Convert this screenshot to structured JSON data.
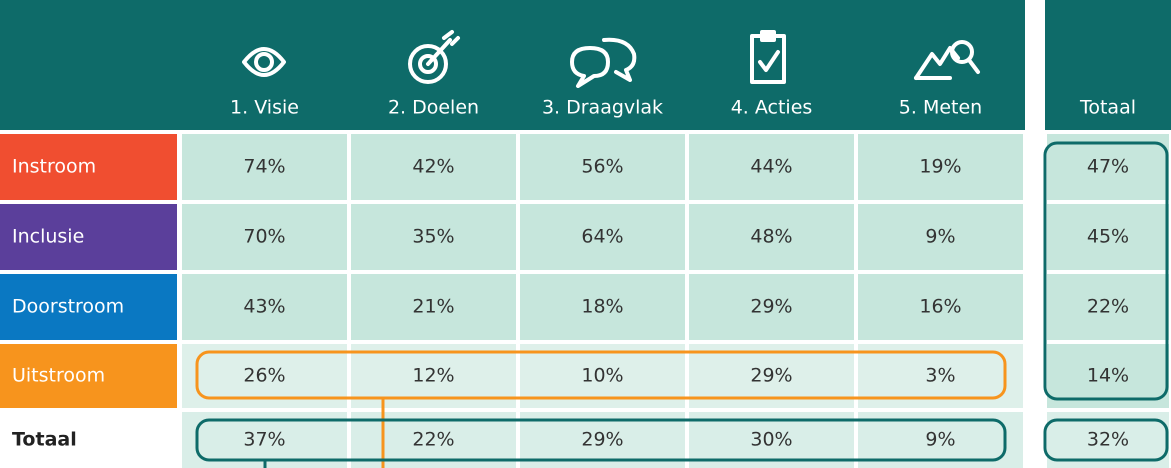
{
  "table": {
    "columns": [
      "1. Visie",
      "2. Doelen",
      "3. Draagvlak",
      "4. Acties",
      "5. Meten",
      "Totaal"
    ],
    "rows": [
      {
        "label": "Instroom",
        "cells": [
          "74%",
          "42%",
          "56%",
          "44%",
          "19%",
          "47%"
        ]
      },
      {
        "label": "Inclusie",
        "cells": [
          "70%",
          "35%",
          "64%",
          "48%",
          "9%",
          "45%"
        ]
      },
      {
        "label": "Doorstroom",
        "cells": [
          "43%",
          "21%",
          "18%",
          "29%",
          "16%",
          "22%"
        ]
      },
      {
        "label": "Uitstroom",
        "cells": [
          "26%",
          "12%",
          "10%",
          "29%",
          "3%",
          "14%"
        ]
      },
      {
        "label": "Totaal",
        "cells": [
          "37%",
          "22%",
          "29%",
          "30%",
          "9%",
          "32%"
        ]
      }
    ]
  }
}
